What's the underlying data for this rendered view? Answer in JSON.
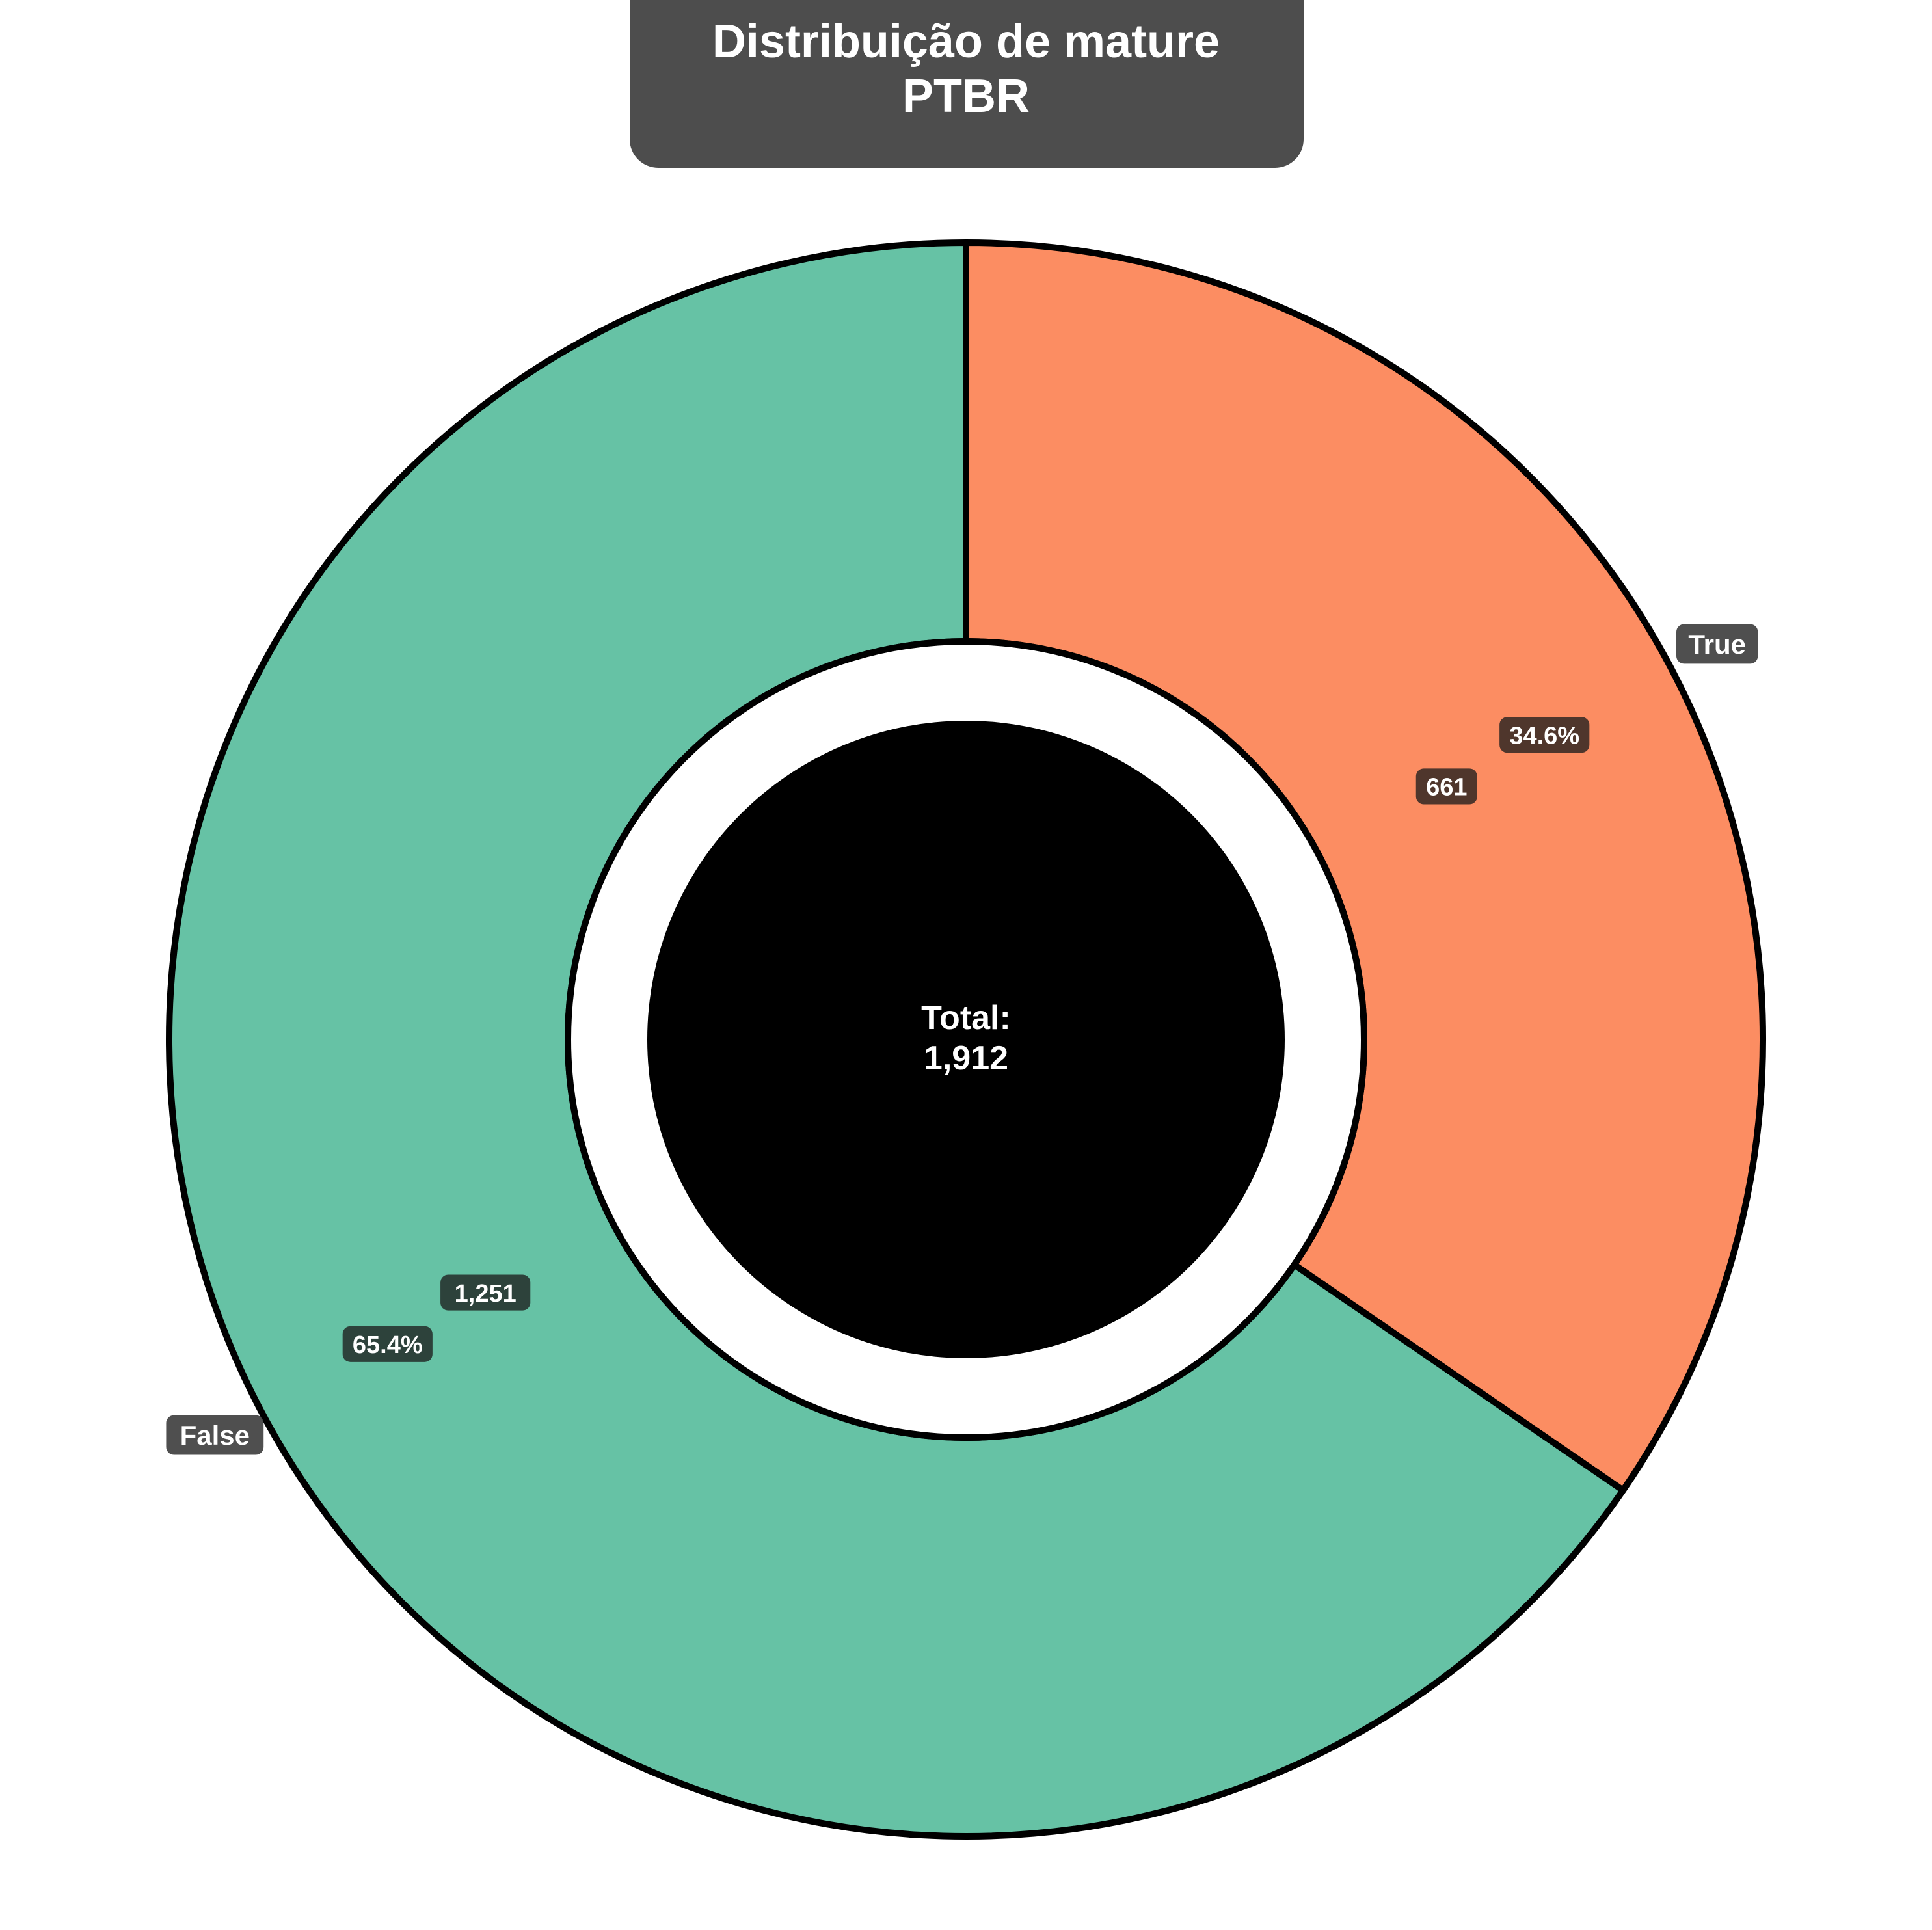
{
  "chart_data": {
    "type": "pie",
    "title": "Distribuição de mature\nPTBR",
    "categories": [
      "False",
      "True"
    ],
    "values": [
      1251,
      661
    ],
    "value_labels": [
      "1,251",
      "661"
    ],
    "percent_labels": [
      "65.4%",
      "34.6%"
    ],
    "colors": [
      "#66c2a5",
      "#fc8d62"
    ],
    "center_label": "Total:\n1,912",
    "donut": true
  }
}
